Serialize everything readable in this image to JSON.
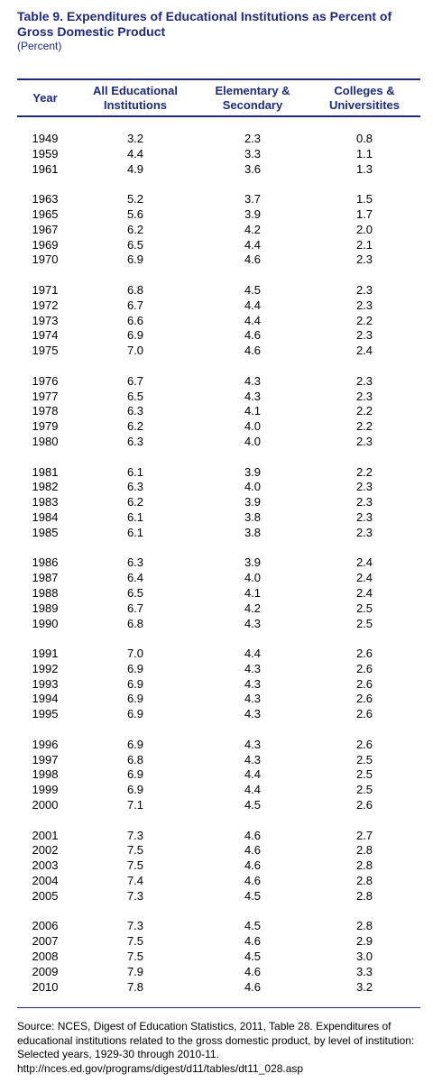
{
  "title": "Table 9. Expenditures of Educational Institutions as Percent of Gross Domestic Product",
  "subtitle": "(Percent)",
  "table": {
    "headers": [
      "Year",
      "All Educational Institutions",
      "Elementary & Secondary",
      "Colleges & Universitites"
    ],
    "groups": [
      [
        [
          "1949",
          "3.2",
          "2.3",
          "0.8"
        ],
        [
          "1959",
          "4.4",
          "3.3",
          "1.1"
        ],
        [
          "1961",
          "4.9",
          "3.6",
          "1.3"
        ]
      ],
      [
        [
          "1963",
          "5.2",
          "3.7",
          "1.5"
        ],
        [
          "1965",
          "5.6",
          "3.9",
          "1.7"
        ],
        [
          "1967",
          "6.2",
          "4.2",
          "2.0"
        ],
        [
          "1969",
          "6.5",
          "4.4",
          "2.1"
        ],
        [
          "1970",
          "6.9",
          "4.6",
          "2.3"
        ]
      ],
      [
        [
          "1971",
          "6.8",
          "4.5",
          "2.3"
        ],
        [
          "1972",
          "6.7",
          "4.4",
          "2.3"
        ],
        [
          "1973",
          "6.6",
          "4.4",
          "2.2"
        ],
        [
          "1974",
          "6.9",
          "4.6",
          "2.3"
        ],
        [
          "1975",
          "7.0",
          "4.6",
          "2.4"
        ]
      ],
      [
        [
          "1976",
          "6.7",
          "4.3",
          "2.3"
        ],
        [
          "1977",
          "6.5",
          "4.3",
          "2.3"
        ],
        [
          "1978",
          "6.3",
          "4.1",
          "2.2"
        ],
        [
          "1979",
          "6.2",
          "4.0",
          "2.2"
        ],
        [
          "1980",
          "6.3",
          "4.0",
          "2.3"
        ]
      ],
      [
        [
          "1981",
          "6.1",
          "3.9",
          "2.2"
        ],
        [
          "1982",
          "6.3",
          "4.0",
          "2.3"
        ],
        [
          "1983",
          "6.2",
          "3.9",
          "2.3"
        ],
        [
          "1984",
          "6.1",
          "3.8",
          "2.3"
        ],
        [
          "1985",
          "6.1",
          "3.8",
          "2.3"
        ]
      ],
      [
        [
          "1986",
          "6.3",
          "3.9",
          "2.4"
        ],
        [
          "1987",
          "6.4",
          "4.0",
          "2.4"
        ],
        [
          "1988",
          "6.5",
          "4.1",
          "2.4"
        ],
        [
          "1989",
          "6.7",
          "4.2",
          "2.5"
        ],
        [
          "1990",
          "6.8",
          "4.3",
          "2.5"
        ]
      ],
      [
        [
          "1991",
          "7.0",
          "4.4",
          "2.6"
        ],
        [
          "1992",
          "6.9",
          "4.3",
          "2.6"
        ],
        [
          "1993",
          "6.9",
          "4.3",
          "2.6"
        ],
        [
          "1994",
          "6.9",
          "4.3",
          "2.6"
        ],
        [
          "1995",
          "6.9",
          "4.3",
          "2.6"
        ]
      ],
      [
        [
          "1996",
          "6.9",
          "4.3",
          "2.6"
        ],
        [
          "1997",
          "6.8",
          "4.3",
          "2.5"
        ],
        [
          "1998",
          "6.9",
          "4.4",
          "2.5"
        ],
        [
          "1999",
          "6.9",
          "4.4",
          "2.5"
        ],
        [
          "2000",
          "7.1",
          "4.5",
          "2.6"
        ]
      ],
      [
        [
          "2001",
          "7.3",
          "4.6",
          "2.7"
        ],
        [
          "2002",
          "7.5",
          "4.6",
          "2.8"
        ],
        [
          "2003",
          "7.5",
          "4.6",
          "2.8"
        ],
        [
          "2004",
          "7.4",
          "4.6",
          "2.8"
        ],
        [
          "2005",
          "7.3",
          "4.5",
          "2.8"
        ]
      ],
      [
        [
          "2006",
          "7.3",
          "4.5",
          "2.8"
        ],
        [
          "2007",
          "7.5",
          "4.6",
          "2.9"
        ],
        [
          "2008",
          "7.5",
          "4.5",
          "3.0"
        ],
        [
          "2009",
          "7.9",
          "4.6",
          "3.3"
        ],
        [
          "2010",
          "7.8",
          "4.6",
          "3.2"
        ]
      ]
    ]
  },
  "source": "Source: NCES, Digest of Education Statistics, 2011, Table 28.  Expenditures of educational institutions related to the gross domestic product, by level of institution:  Selected years, 1929-30 through 2010-11. http://nces.ed.gov/programs/digest/d11/tables/dt11_028.asp"
}
